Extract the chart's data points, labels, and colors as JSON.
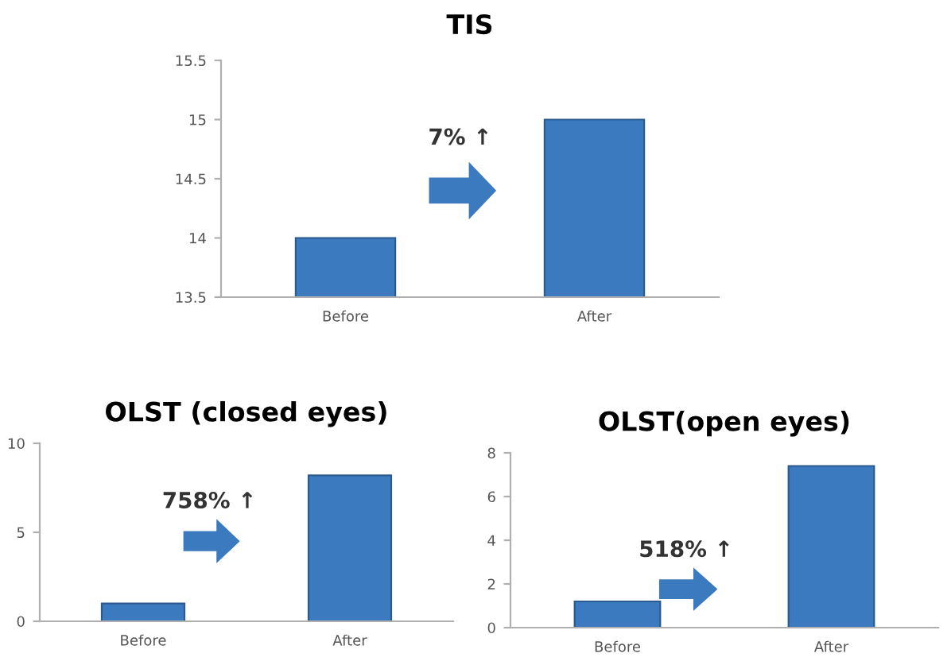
{
  "chart_data": [
    {
      "type": "bar",
      "title": "TIS",
      "categories": [
        "Before",
        "After"
      ],
      "values": [
        14.0,
        15.0
      ],
      "color": "#3c7abf",
      "ylim": [
        13.5,
        15.5
      ],
      "yticks": [
        13.5,
        14,
        14.5,
        15,
        15.5
      ],
      "grid": false,
      "annotations": [
        "7% ↑"
      ]
    },
    {
      "type": "bar",
      "title": "OLST (closed eyes)",
      "categories": [
        "Before",
        "After"
      ],
      "values": [
        1,
        8.2
      ],
      "color": "#3c7abf",
      "ylim": [
        0,
        10
      ],
      "yticks": [
        0,
        5,
        10
      ],
      "grid": false,
      "annotations": [
        "758% ↑"
      ]
    },
    {
      "type": "bar",
      "title": "OLST(open eyes)",
      "categories": [
        "Before",
        "After"
      ],
      "values": [
        1.2,
        7.4
      ],
      "color": "#3c7abf",
      "ylim": [
        0,
        8
      ],
      "yticks": [
        0,
        2,
        4,
        6,
        8
      ],
      "grid": false,
      "annotations": [
        "518% ↑"
      ]
    }
  ]
}
